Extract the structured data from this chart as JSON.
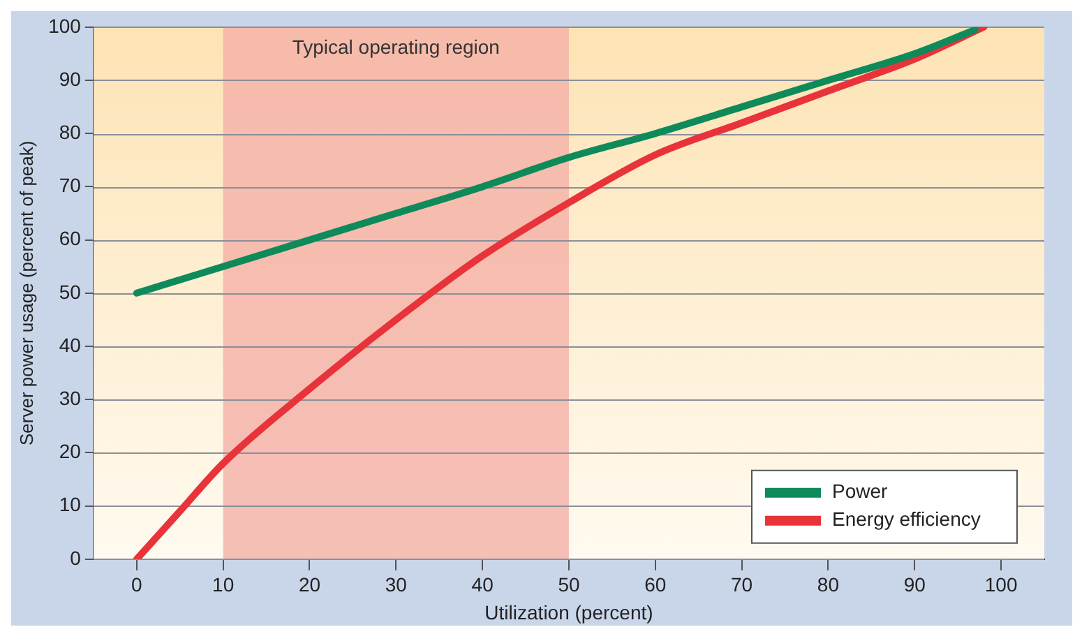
{
  "chart_data": {
    "type": "line",
    "xlabel": "Utilization (percent)",
    "ylabel": "Server power usage (percent of peak)",
    "xlim": [
      -5,
      105
    ],
    "xticks": [
      0,
      10,
      20,
      30,
      40,
      50,
      60,
      70,
      80,
      90,
      100
    ],
    "ylim": [
      0,
      100
    ],
    "yticks": [
      0,
      10,
      20,
      30,
      40,
      50,
      60,
      70,
      80,
      90,
      100
    ],
    "grid": "y",
    "legend": "bottom right",
    "bands": [
      {
        "axis": "x",
        "from": 10,
        "to": 50,
        "label": "Typical operating region",
        "color": "#f4b0a8"
      }
    ],
    "series": [
      {
        "name": "Power",
        "color": "#0f8a5a",
        "x": [
          0,
          10,
          20,
          30,
          40,
          50,
          60,
          70,
          80,
          90,
          97
        ],
        "values": [
          50,
          55,
          60,
          65,
          70,
          75.5,
          80,
          85,
          90,
          95,
          99.5
        ]
      },
      {
        "name": "Energy efficiency",
        "color": "#e8333a",
        "x": [
          0,
          5,
          10,
          20,
          30,
          40,
          50,
          60,
          70,
          80,
          90,
          98
        ],
        "values": [
          0,
          9,
          18,
          32,
          45,
          57,
          67,
          76,
          82,
          88,
          94,
          100
        ]
      }
    ]
  }
}
